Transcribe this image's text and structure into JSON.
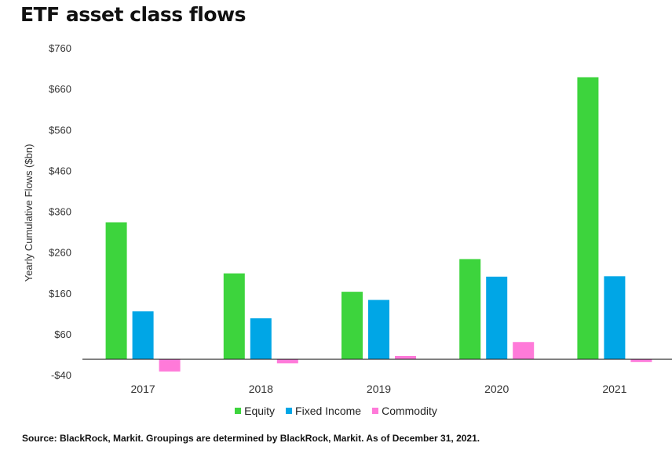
{
  "chart_data": {
    "type": "bar",
    "title": "ETF asset class flows",
    "ylabel": "Yearly Cumulative Flows ($bn)",
    "xlabel": "",
    "categories": [
      "2017",
      "2018",
      "2019",
      "2020",
      "2021"
    ],
    "series": [
      {
        "name": "Equity",
        "color": "#3dd43d",
        "values": [
          335,
          210,
          165,
          245,
          690
        ]
      },
      {
        "name": "Fixed Income",
        "color": "#00a6e6",
        "values": [
          117,
          100,
          145,
          202,
          203
        ]
      },
      {
        "name": "Commodity",
        "color": "#ff7ad9",
        "values": [
          -30,
          -10,
          8,
          42,
          -7
        ]
      }
    ],
    "ylim": [
      -40,
      760
    ],
    "yticks": [
      -40,
      60,
      160,
      260,
      360,
      460,
      560,
      660,
      760
    ],
    "ytick_labels": [
      "-$40",
      "$60",
      "$160",
      "$260",
      "$360",
      "$460",
      "$560",
      "$660",
      "$760"
    ],
    "grid": false,
    "legend_position": "bottom-center"
  },
  "source": "Source: BlackRock, Markit. Groupings are determined by BlackRock, Markit. As of December 31, 2021."
}
